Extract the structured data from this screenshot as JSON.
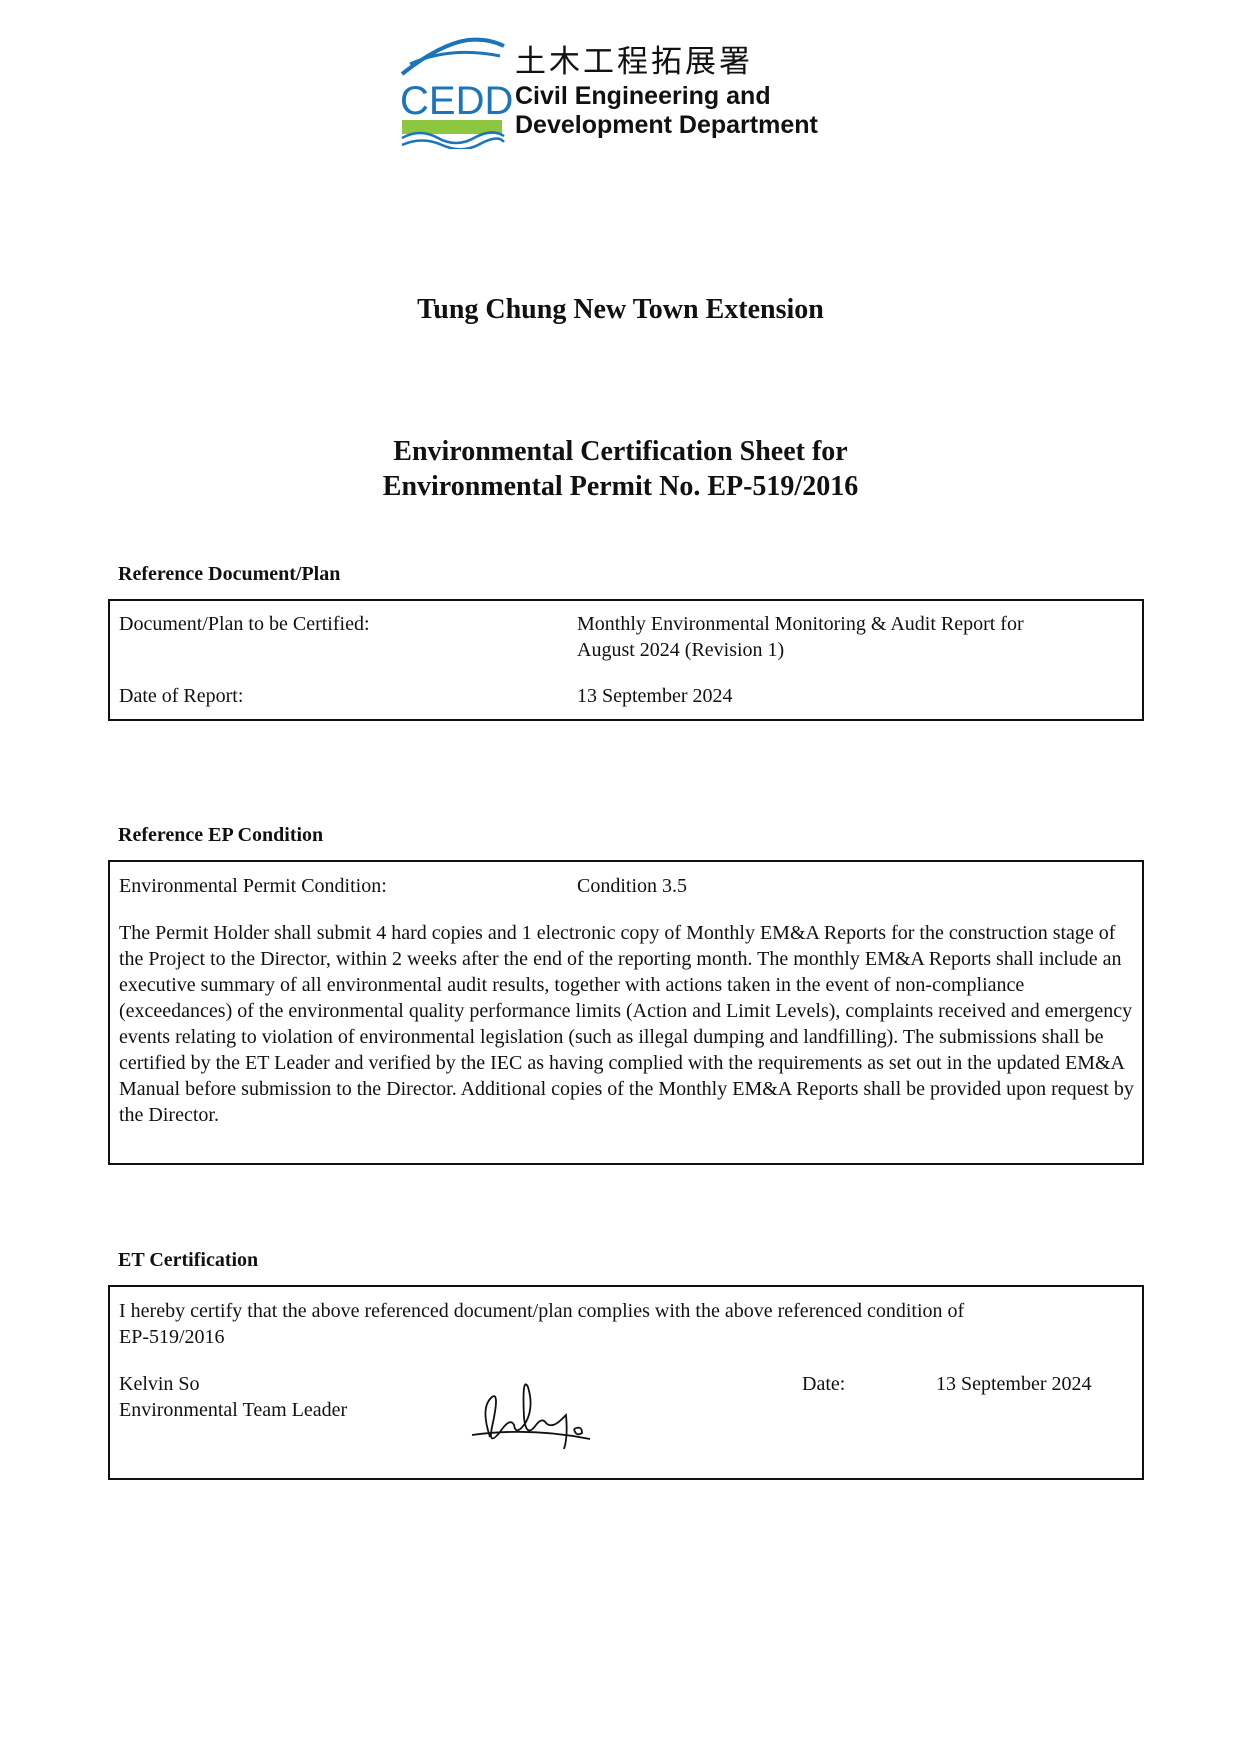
{
  "logo": {
    "chinese_name": "土木工程拓展署",
    "acronym": "CEDD",
    "english_name_line1": "Civil Engineering and",
    "english_name_line2": "Development Department",
    "colors": {
      "blue": "#1b75bb",
      "green": "#8dc63f"
    }
  },
  "project_title": "Tung Chung New Town Extension",
  "sheet_title_line1": "Environmental Certification Sheet for",
  "sheet_title_line2": "Environmental Permit No. EP-519/2016",
  "reference_document": {
    "heading": "Reference Document/Plan",
    "doc_label": "Document/Plan to be Certified:",
    "doc_value_line1": "Monthly Environmental Monitoring & Audit Report for",
    "doc_value_line2": "August 2024 (Revision 1)",
    "date_label": "Date of Report:",
    "date_value": "13 September 2024"
  },
  "reference_ep": {
    "heading": "Reference EP Condition",
    "condition_label": "Environmental Permit Condition:",
    "condition_value": "Condition 3.5",
    "condition_text": "The Permit Holder shall submit 4 hard copies and 1 electronic copy of Monthly EM&A Reports for the construction stage of the Project to the Director, within 2 weeks after the end of the reporting month. The monthly EM&A Reports shall include an executive summary of all environmental audit results, together with actions taken in the event of non-compliance (exceedances) of the environmental quality performance limits (Action and Limit Levels), complaints received and emergency events relating to violation of environmental legislation (such as illegal dumping and landfilling).  The submissions shall be certified by the ET Leader and verified by the IEC as having complied with the requirements as set out in the updated EM&A Manual before submission to the Director.  Additional copies of the Monthly EM&A Reports shall be provided upon request by the Director."
  },
  "et_certification": {
    "heading": "ET Certification",
    "statement_line1": "I hereby certify that the above referenced document/plan complies with the above referenced condition of",
    "statement_line2": "EP-519/2016",
    "name": "Kelvin So",
    "role": "Environmental Team Leader",
    "signature": "Kelvin",
    "date_label": "Date:",
    "date_value": "13 September 2024"
  }
}
